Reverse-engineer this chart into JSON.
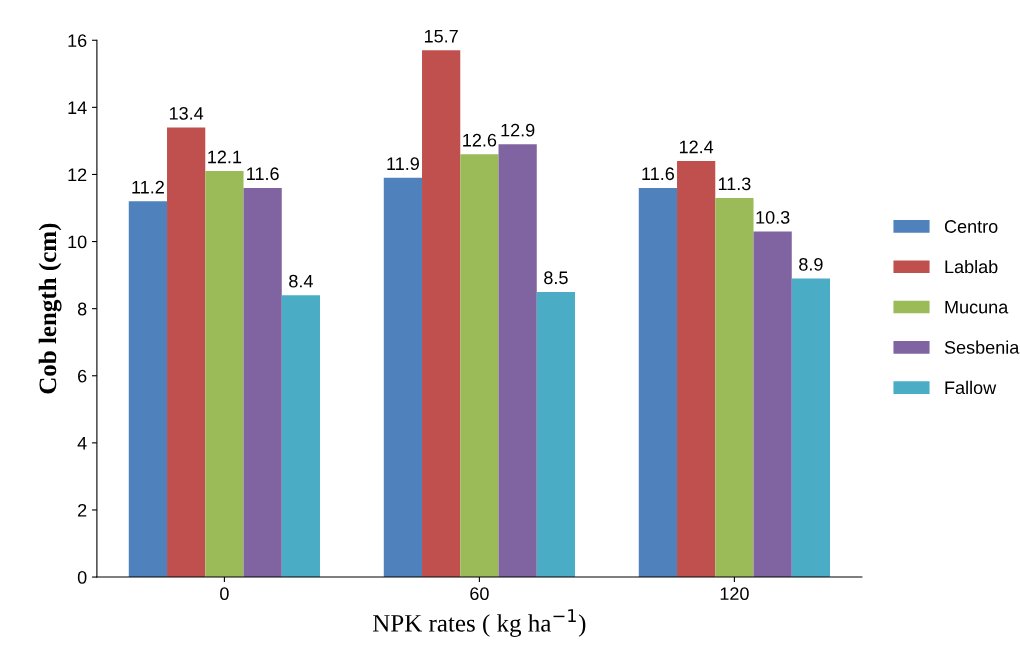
{
  "chart_data": {
    "type": "bar",
    "xlabel": "NPK rates ( kg ha$^{−1}$)",
    "ylabel": "Cob length (cm)",
    "categories": [
      "0",
      "60",
      "120"
    ],
    "series": [
      {
        "name": "Centro",
        "color": "#4f81bd",
        "values": [
          11.2,
          11.9,
          11.6
        ]
      },
      {
        "name": "Lablab",
        "color": "#c0504d",
        "values": [
          13.4,
          15.7,
          12.4
        ]
      },
      {
        "name": "Mucuna",
        "color": "#9bbb59",
        "values": [
          12.1,
          12.6,
          11.3
        ]
      },
      {
        "name": "Sesbenia",
        "color": "#8064a2",
        "values": [
          11.6,
          12.9,
          10.3
        ]
      },
      {
        "name": "Fallow",
        "color": "#4bacc6",
        "values": [
          8.4,
          8.5,
          8.9
        ]
      }
    ],
    "ylim": [
      0,
      16
    ],
    "yticks": [
      0,
      2,
      4,
      6,
      8,
      10,
      12,
      14,
      16
    ],
    "data_labels": true,
    "legend": "right",
    "grid": false
  }
}
